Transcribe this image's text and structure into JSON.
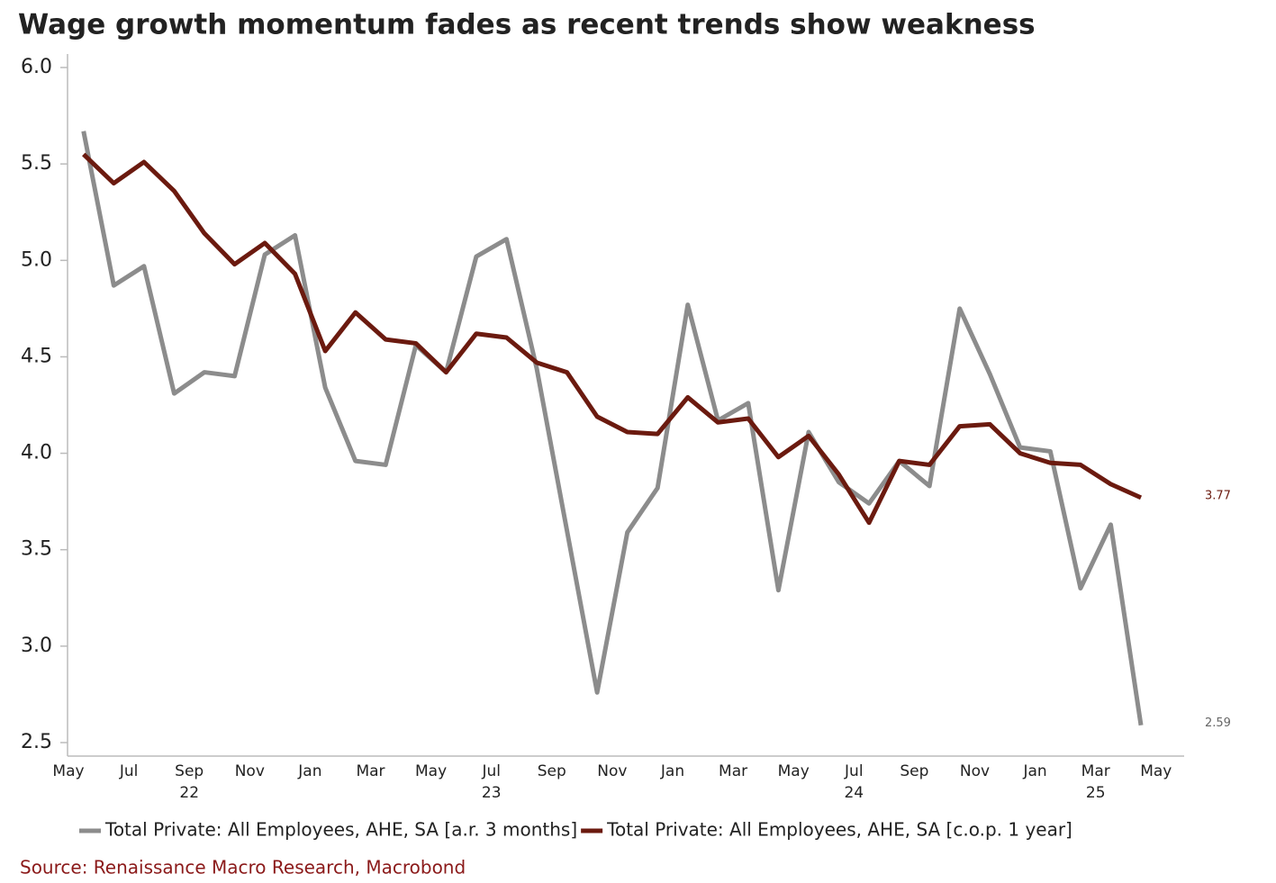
{
  "chart_data": {
    "type": "line",
    "title": "Wage growth momentum fades as recent trends show weakness",
    "source": "Source: Renaissance Macro Research, Macrobond",
    "categories": [
      "May",
      null,
      "Jul",
      null,
      "Sep",
      null,
      "Nov",
      null,
      "Jan",
      null,
      "Mar",
      null,
      "May",
      null,
      "Jul",
      null,
      "Sep",
      null,
      "Nov",
      null,
      "Jan",
      null,
      "Mar",
      null,
      "May",
      null,
      "Jul",
      null,
      "Sep",
      null,
      "Nov",
      null,
      "Jan",
      null,
      "Mar",
      null,
      "May"
    ],
    "category_years": [
      null,
      null,
      null,
      null,
      "22",
      null,
      null,
      null,
      null,
      null,
      null,
      null,
      null,
      null,
      "23",
      null,
      null,
      null,
      null,
      null,
      null,
      null,
      null,
      null,
      null,
      null,
      "24",
      null,
      null,
      null,
      null,
      null,
      null,
      null,
      "25",
      null,
      null
    ],
    "series": [
      {
        "name": "Total Private: All Employees, AHE, SA [a.r. 3 months]",
        "color": "#8c8c8c",
        "values": [
          5.67,
          4.87,
          4.97,
          4.31,
          4.42,
          4.4,
          5.03,
          5.13,
          4.34,
          3.96,
          3.94,
          4.56,
          4.42,
          5.02,
          5.11,
          4.44,
          3.6,
          2.76,
          3.59,
          3.82,
          4.77,
          4.17,
          4.26,
          3.29,
          4.11,
          3.85,
          3.74,
          3.96,
          3.83,
          4.75,
          4.41,
          4.03,
          4.01,
          3.3,
          3.63,
          2.59,
          null
        ]
      },
      {
        "name": "Total Private: All Employees, AHE, SA [c.o.p. 1 year]",
        "color": "#6b1a0f",
        "values": [
          5.55,
          5.4,
          5.51,
          5.36,
          5.14,
          4.98,
          5.09,
          4.93,
          4.53,
          4.73,
          4.59,
          4.57,
          4.42,
          4.62,
          4.6,
          4.47,
          4.42,
          4.19,
          4.11,
          4.1,
          4.29,
          4.16,
          4.18,
          3.98,
          4.09,
          3.89,
          3.64,
          3.96,
          3.94,
          4.14,
          4.15,
          4.0,
          3.95,
          3.94,
          3.84,
          3.77,
          null
        ]
      }
    ],
    "ylim": [
      2.5,
      6.0
    ],
    "yticks": [
      {
        "value": 2.5,
        "label": "2.5"
      },
      {
        "value": 3,
        "label": "3.0"
      },
      {
        "value": 3.5,
        "label": "3.5"
      },
      {
        "value": 4,
        "label": "4.0"
      },
      {
        "value": 4.5,
        "label": "4.5"
      },
      {
        "value": 5,
        "label": "5.0"
      },
      {
        "value": 5.5,
        "label": "5.5"
      },
      {
        "value": 6,
        "label": "6.0"
      }
    ],
    "label_last": true,
    "legend": "bottom"
  }
}
